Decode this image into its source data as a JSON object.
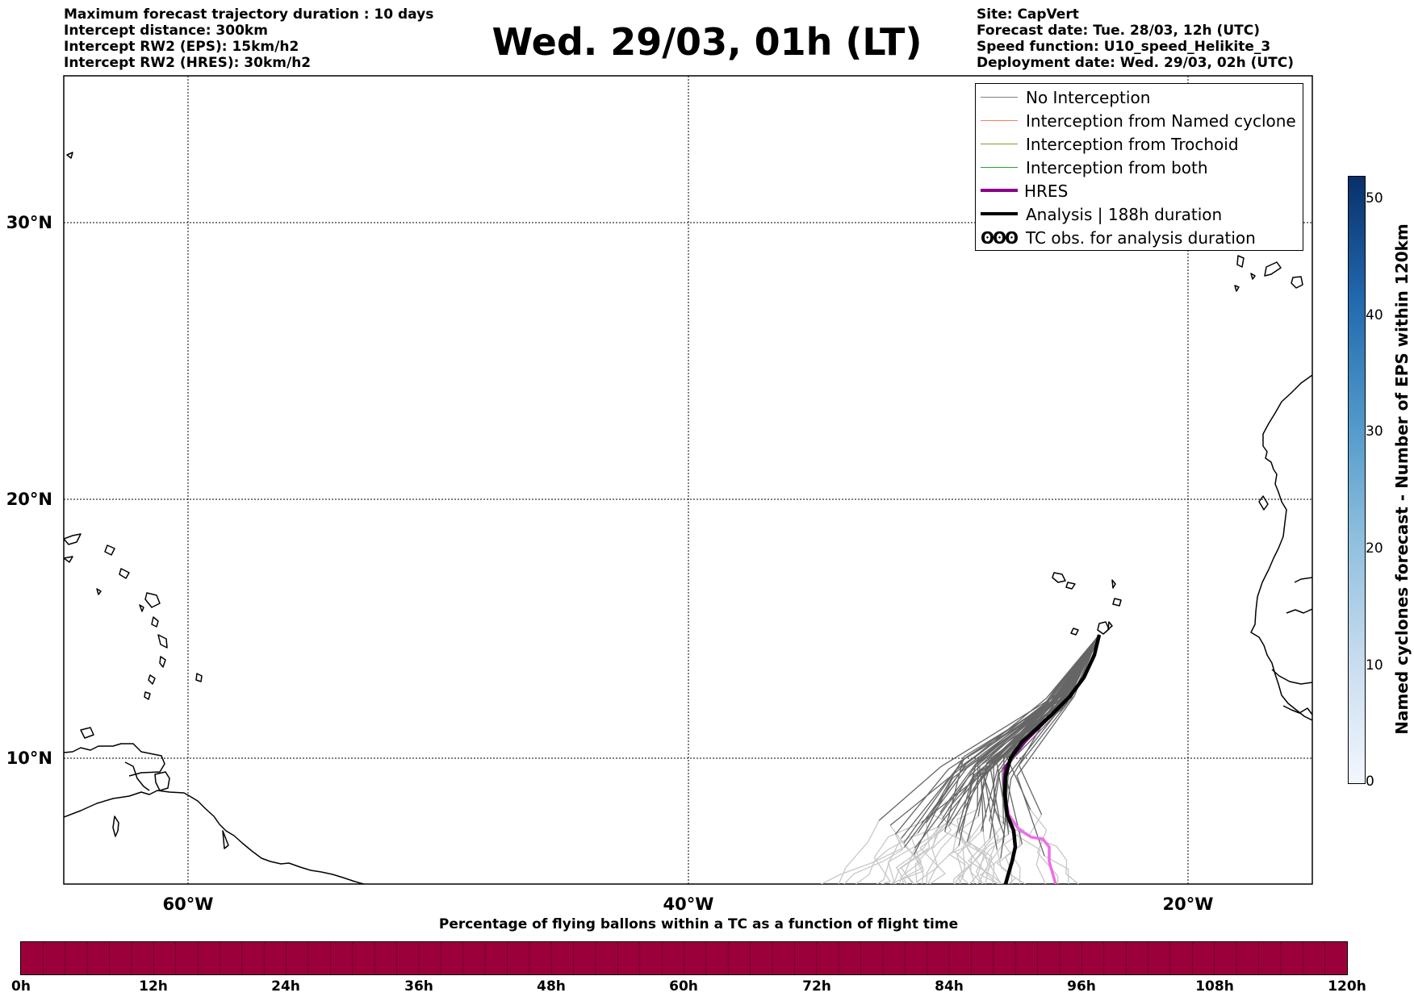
{
  "header_left": [
    "Maximum forecast trajectory duration : 10 days",
    "Intercept distance: 300km",
    "Intercept RW2 (EPS):  15km/h2",
    "Intercept RW2 (HRES): 30km/h2"
  ],
  "header_right": [
    "Site: CapVert",
    "Forecast date: Tue. 28/03, 12h (UTC)",
    "Speed function: U10_speed_Helikite_3",
    "Deployment date: Wed. 29/03, 02h (UTC)"
  ],
  "title": "Wed. 29/03, 01h (LT)",
  "map": {
    "lat_labels": [
      "30°N",
      "20°N",
      "10°N"
    ],
    "lon_labels": [
      "60°W",
      "40°W",
      "20°W"
    ],
    "gridlines": true,
    "site": "CapVert"
  },
  "legend": {
    "items": [
      {
        "label": "No Interception",
        "color": "#808080",
        "icon": "thin-line"
      },
      {
        "label": "Interception from Named cyclone",
        "color": "#ff7f50",
        "icon": "thin-line"
      },
      {
        "label": "Interception from Trochoid",
        "color": "#9a8f2a",
        "icon": "thin-line"
      },
      {
        "label": "Interception from both",
        "color": "#2ca02c",
        "icon": "thin-line"
      },
      {
        "label": "HRES",
        "color": "#8b008b",
        "icon": "thick-line"
      },
      {
        "label": "Analysis | 188h duration",
        "color": "#000000",
        "icon": "thick-line"
      },
      {
        "label": "TC obs. for analysis duration",
        "color": "#000000",
        "icon": "tc-symbol",
        "symbol": "ʘʘʘ"
      }
    ]
  },
  "colorbar_vertical": {
    "label": "Named cyclones forecast - Number of EPS within 120km",
    "ticks": [
      "0",
      "10",
      "20",
      "30",
      "40",
      "50"
    ],
    "colormap": "blues"
  },
  "colorbar_horizontal": {
    "label": "Percentage of flying ballons within a TC as a function of flight time",
    "ticks": [
      "0h",
      "12h",
      "24h",
      "36h",
      "48h",
      "60h",
      "72h",
      "84h",
      "96h",
      "108h",
      "120h"
    ],
    "color": "#9b003b"
  }
}
